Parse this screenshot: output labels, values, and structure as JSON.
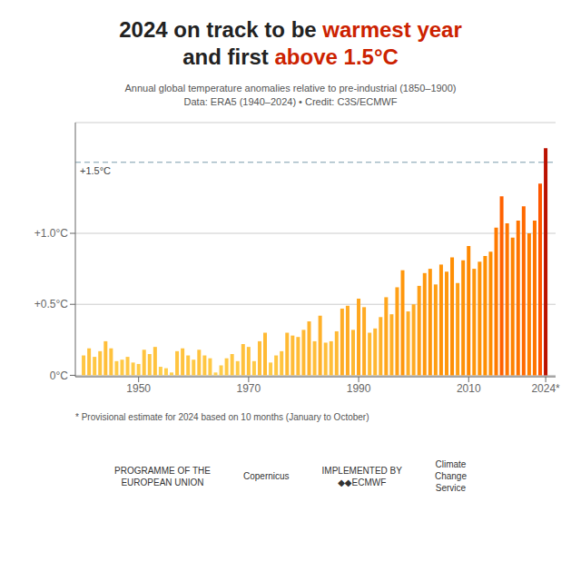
{
  "chart_data": {
    "type": "bar",
    "title": [
      [
        {
          "text": "2024 on track to be "
        },
        {
          "text": "warmest year",
          "color": "#cc2200"
        }
      ],
      [
        {
          "text": "and first "
        },
        {
          "text": "above 1.5°C",
          "color": "#cc2200"
        }
      ]
    ],
    "subtitle": [
      "Annual global temperature anomalies relative to pre-industrial (1850–1900)",
      "Data: ERA5 (1940–2024)  •  Credit: C3S/ECMWF"
    ],
    "footnote": "* Provisional estimate for 2024 based on 10 months (January to October)",
    "annotations": [
      [
        "PROGRAMME OF THE",
        "EUROPEAN UNION"
      ],
      [
        "Copernicus"
      ],
      [
        "IMPLEMENTED BY",
        "◆◆ECMWF"
      ],
      [
        "Climate",
        "Change",
        "Service"
      ]
    ],
    "x": [
      1940,
      1941,
      1942,
      1943,
      1944,
      1945,
      1946,
      1947,
      1948,
      1949,
      1950,
      1951,
      1952,
      1953,
      1954,
      1955,
      1956,
      1957,
      1958,
      1959,
      1960,
      1961,
      1962,
      1963,
      1964,
      1965,
      1966,
      1967,
      1968,
      1969,
      1970,
      1971,
      1972,
      1973,
      1974,
      1975,
      1976,
      1977,
      1978,
      1979,
      1980,
      1981,
      1982,
      1983,
      1984,
      1985,
      1986,
      1987,
      1988,
      1989,
      1990,
      1991,
      1992,
      1993,
      1994,
      1995,
      1996,
      1997,
      1998,
      1999,
      2000,
      2001,
      2002,
      2003,
      2004,
      2005,
      2006,
      2007,
      2008,
      2009,
      2010,
      2011,
      2012,
      2013,
      2014,
      2015,
      2016,
      2017,
      2018,
      2019,
      2020,
      2021,
      2022,
      2023,
      2024
    ],
    "values": [
      0.14,
      0.19,
      0.13,
      0.17,
      0.24,
      0.19,
      0.1,
      0.11,
      0.13,
      0.09,
      0.08,
      0.18,
      0.15,
      0.2,
      0.06,
      0.05,
      0.02,
      0.17,
      0.19,
      0.14,
      0.11,
      0.18,
      0.14,
      0.12,
      0.02,
      0.07,
      0.12,
      0.15,
      0.1,
      0.22,
      0.2,
      0.1,
      0.24,
      0.3,
      0.09,
      0.14,
      0.17,
      0.3,
      0.28,
      0.27,
      0.32,
      0.38,
      0.24,
      0.42,
      0.23,
      0.24,
      0.31,
      0.47,
      0.49,
      0.32,
      0.54,
      0.48,
      0.3,
      0.33,
      0.41,
      0.55,
      0.43,
      0.62,
      0.74,
      0.45,
      0.5,
      0.63,
      0.72,
      0.75,
      0.64,
      0.78,
      0.73,
      0.83,
      0.65,
      0.81,
      0.91,
      0.75,
      0.8,
      0.84,
      0.87,
      1.04,
      1.26,
      1.07,
      0.97,
      1.09,
      1.19,
      1.0,
      1.09,
      1.35,
      1.6
    ],
    "colors": [
      "#FFC643",
      "#FFC23E",
      "#FFC744",
      "#FFC440",
      "#FFBE3A",
      "#FFC23E",
      "#FFCA46",
      "#FFC946",
      "#FFC744",
      "#FFCA47",
      "#FFCB48",
      "#FFC33F",
      "#FFC642",
      "#FFC23D",
      "#FFCD4A",
      "#FFCE4B",
      "#FFD04E",
      "#FFC440",
      "#FFC23E",
      "#FFC643",
      "#FFC946",
      "#FFC33F",
      "#FFC643",
      "#FFC845",
      "#FFD04E",
      "#FFCC49",
      "#FFC845",
      "#FFC642",
      "#FFCA46",
      "#FFC03C",
      "#FFC23D",
      "#FFCA46",
      "#FFBE3A",
      "#FFBA34",
      "#FFCA47",
      "#FFC643",
      "#FFC440",
      "#FFBA34",
      "#FFBB36",
      "#FFBC37",
      "#FFB832",
      "#FFB32D",
      "#FFBE3A",
      "#FFB029",
      "#FFBF3B",
      "#FFBE3A",
      "#FFB933",
      "#FFAC25",
      "#FFAB23",
      "#FFB832",
      "#FFA71E",
      "#FFAB24",
      "#FFBA34",
      "#FFB732",
      "#FFB12A",
      "#FFA61E",
      "#FFAF28",
      "#FFA017",
      "#FF970C",
      "#FFAE27",
      "#FFAA22",
      "#FF9F16",
      "#FF980E",
      "#FF960B",
      "#FF9F15",
      "#FF9309",
      "#FF970D",
      "#FF8F04",
      "#FF9E14",
      "#FF9106",
      "#FF8800",
      "#FF960B",
      "#FF9207",
      "#FF8F03",
      "#FF8C00",
      "#FF7A00",
      "#FF6100",
      "#FF7600",
      "#FF8200",
      "#FF7400",
      "#FF6900",
      "#FF7E00",
      "#FF7400",
      "#FF5700",
      "#BB1100"
    ],
    "xlim": [
      1938.5,
      2025.8
    ],
    "xticks": [
      1950,
      1970,
      1990,
      2010,
      {
        "value": 2024,
        "label": "2024*"
      }
    ],
    "ylim": [
      -0.01,
      1.78
    ],
    "yticks": [
      {
        "value": 0,
        "label": "0°C"
      },
      {
        "value": 0.5,
        "label": "+0.5°C"
      },
      {
        "value": 1.0,
        "label": "+1.0°C"
      }
    ],
    "reference_lines": [
      {
        "y": 1.5,
        "label": "+1.5°C",
        "line_style": "dashed",
        "color": "#7a9aaa"
      }
    ],
    "grid": true
  }
}
